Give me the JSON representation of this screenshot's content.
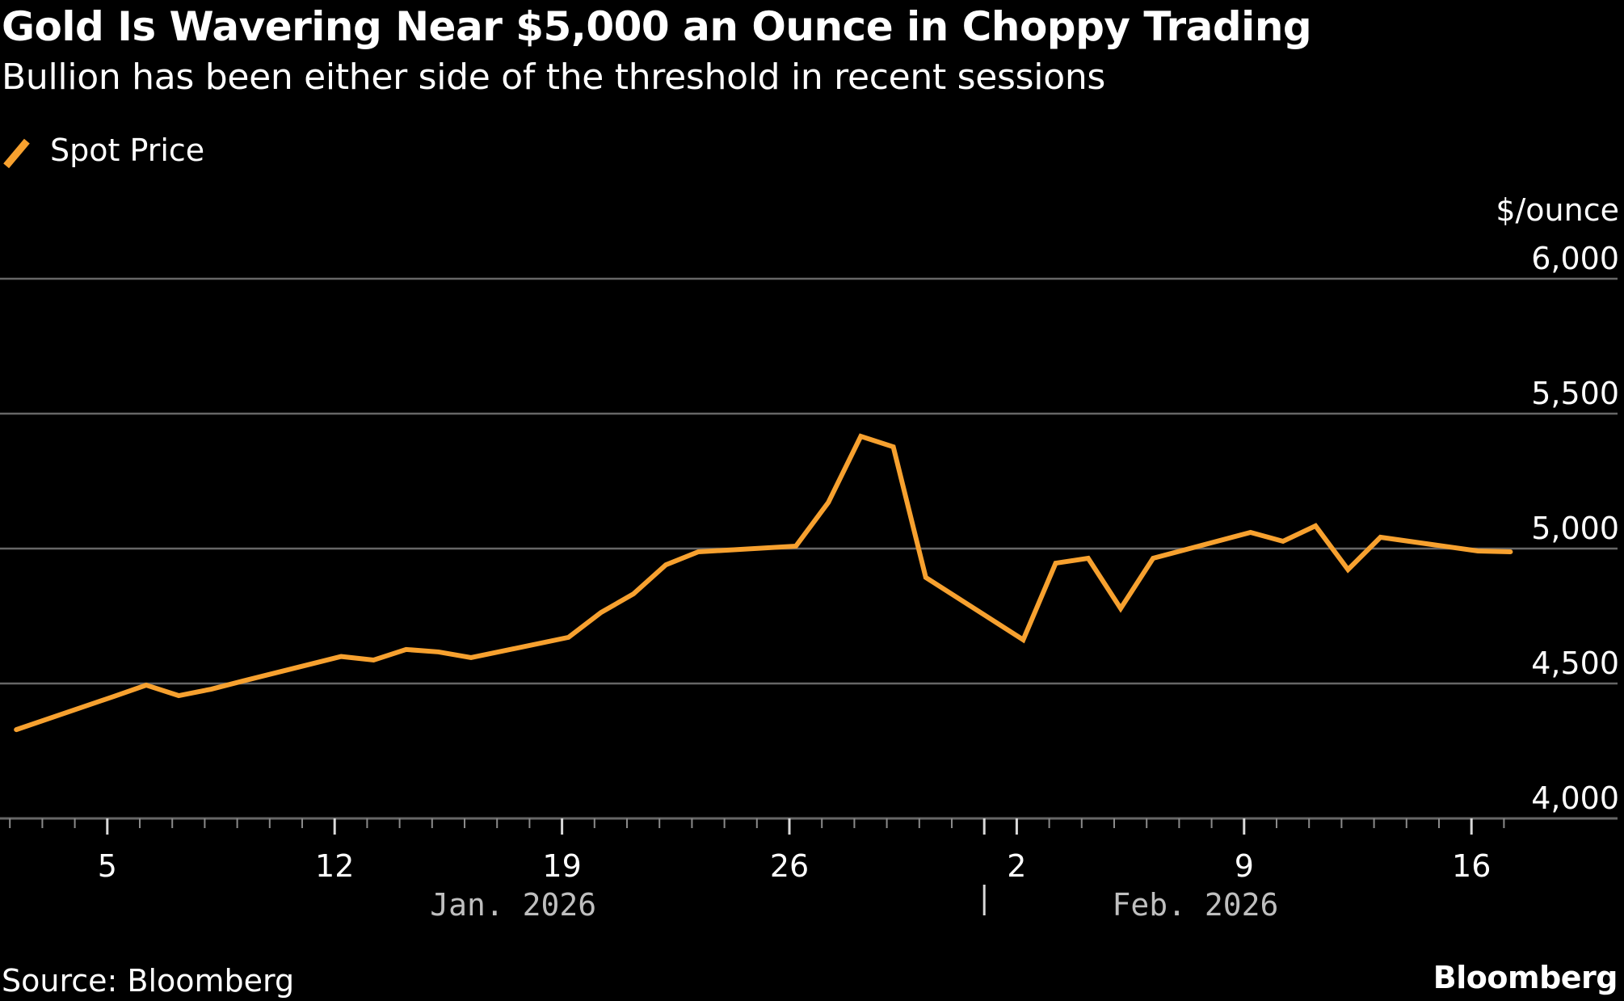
{
  "header": {
    "title": "Gold Is Wavering Near $5,000 an Ounce in Choppy Trading",
    "subtitle": "Bullion has been either side of the threshold in recent sessions"
  },
  "legend": {
    "label": "Spot Price",
    "color": "#f7a12f"
  },
  "footer": {
    "source": "Source: Bloomberg",
    "brand": "Bloomberg"
  },
  "colors": {
    "background": "#000000",
    "line": "#f7a12f",
    "grid": "#666666",
    "month_label": "#bfbfbf"
  },
  "chart_data": {
    "type": "line",
    "title": "Gold Is Wavering Near $5,000 an Ounce in Choppy Trading",
    "subtitle": "Bullion has been either side of the threshold in recent sessions",
    "xlabel": "",
    "ylabel": "$/ounce",
    "ylim": [
      4000,
      6000
    ],
    "yticks": [
      4000,
      4500,
      5000,
      5500,
      6000
    ],
    "ytick_labels": [
      "4,000",
      "4,500",
      "5,000",
      "5,500",
      "6,000"
    ],
    "y_axis_side": "right",
    "grid": true,
    "legend_position": "top-left",
    "x_range": [
      "2026-01-02",
      "2026-02-17"
    ],
    "xtick_dates": [
      "2026-01-05",
      "2026-01-12",
      "2026-01-19",
      "2026-01-26",
      "2026-02-02",
      "2026-02-09",
      "2026-02-16"
    ],
    "xtick_labels": [
      "5",
      "12",
      "19",
      "26",
      "2",
      "9",
      "16"
    ],
    "months": [
      {
        "label": "Jan. 2026",
        "center": "2026-01-17"
      },
      {
        "label": "Feb. 2026",
        "center": "2026-02-07"
      }
    ],
    "month_divider": "2026-02-01",
    "series": [
      {
        "name": "Spot Price",
        "color": "#f7a12f",
        "points": [
          [
            "2026-01-02",
            4329
          ],
          [
            "2026-01-05",
            4452
          ],
          [
            "2026-01-06",
            4494
          ],
          [
            "2026-01-07",
            4455
          ],
          [
            "2026-01-08",
            4479
          ],
          [
            "2026-01-09",
            4510
          ],
          [
            "2026-01-12",
            4600
          ],
          [
            "2026-01-13",
            4587
          ],
          [
            "2026-01-14",
            4626
          ],
          [
            "2026-01-15",
            4617
          ],
          [
            "2026-01-16",
            4596
          ],
          [
            "2026-01-19",
            4671
          ],
          [
            "2026-01-20",
            4763
          ],
          [
            "2026-01-21",
            4832
          ],
          [
            "2026-01-22",
            4940
          ],
          [
            "2026-01-23",
            4988
          ],
          [
            "2026-01-26",
            5009
          ],
          [
            "2026-01-27",
            5171
          ],
          [
            "2026-01-28",
            5416
          ],
          [
            "2026-01-29",
            5377
          ],
          [
            "2026-01-30",
            4893
          ],
          [
            "2026-02-02",
            4662
          ],
          [
            "2026-02-03",
            4946
          ],
          [
            "2026-02-04",
            4964
          ],
          [
            "2026-02-05",
            4778
          ],
          [
            "2026-02-06",
            4964
          ],
          [
            "2026-02-09",
            5060
          ],
          [
            "2026-02-10",
            5027
          ],
          [
            "2026-02-11",
            5084
          ],
          [
            "2026-02-12",
            4922
          ],
          [
            "2026-02-13",
            5042
          ],
          [
            "2026-02-16",
            4991
          ],
          [
            "2026-02-17",
            4988
          ]
        ]
      }
    ]
  }
}
